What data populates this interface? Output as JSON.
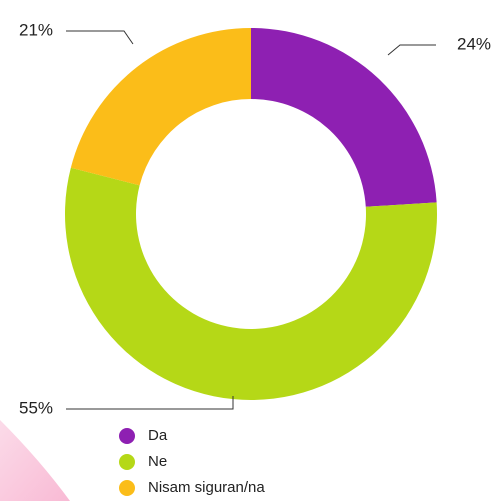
{
  "chart_data": {
    "type": "donut",
    "categories": [
      "Da",
      "Ne",
      "Nisam siguran/na"
    ],
    "values": [
      24,
      55,
      21
    ],
    "value_labels": [
      "24%",
      "55%",
      "21%"
    ],
    "colors": [
      "#8e20b2",
      "#b5d817",
      "#fbbd19"
    ]
  }
}
